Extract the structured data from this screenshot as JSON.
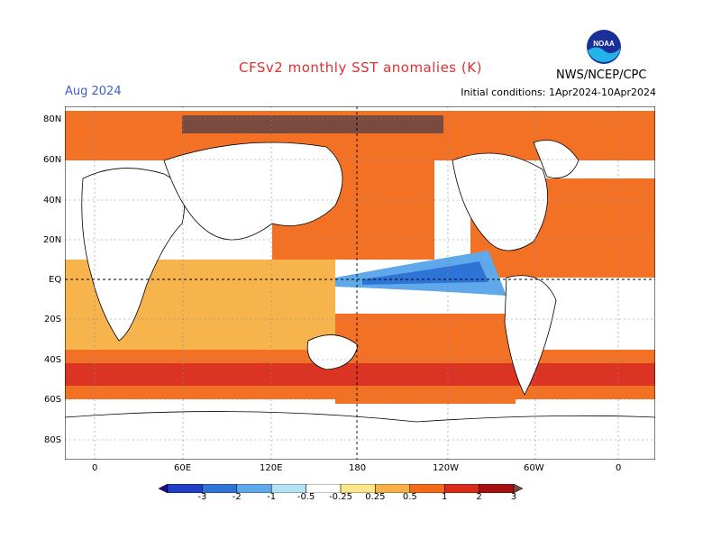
{
  "header": {
    "title": "CFSv2 monthly SST anomalies (K)",
    "month": "Aug 2024",
    "initial_conditions": "Initial conditions: 1Apr2024-10Apr2024",
    "agency": "NWS/NCEP/CPC",
    "logo_text": "NOAA"
  },
  "map": {
    "lat_labels": [
      "80N",
      "60N",
      "40N",
      "20N",
      "EQ",
      "20S",
      "40S",
      "60S",
      "80S"
    ],
    "lon_labels": [
      "0",
      "60E",
      "120E",
      "180",
      "120W",
      "60W",
      "0"
    ]
  },
  "colorbar": {
    "labels": [
      "-3",
      "-2",
      "-1",
      "-0.5",
      "-0.25",
      "0.25",
      "0.5",
      "1",
      "2",
      "3"
    ],
    "colors": [
      "#1c0c8f",
      "#1f3fc6",
      "#2e74d6",
      "#5fa8ea",
      "#b3e2f5",
      "#ffffff",
      "#fde58a",
      "#f7b043",
      "#f26a1a",
      "#d92a1a",
      "#a50f10",
      "#7a4a3e"
    ]
  }
}
